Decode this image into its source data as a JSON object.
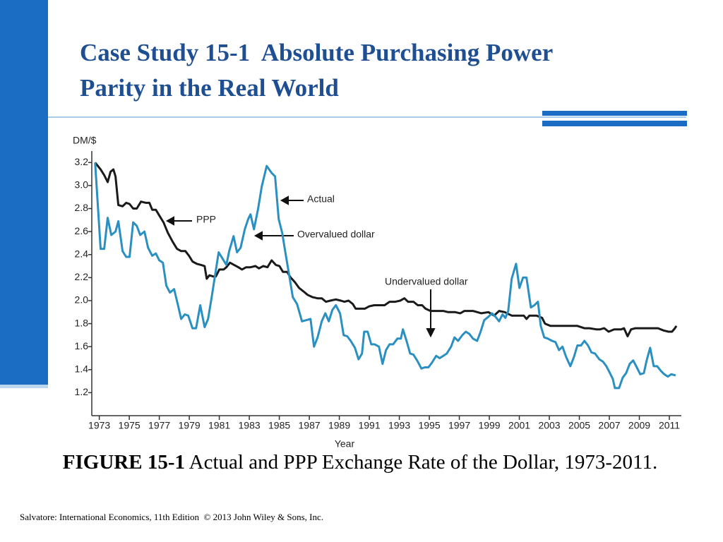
{
  "slide": {
    "title_lines": [
      "Case Study 15-1  Absolute Purchasing Power",
      "Parity in the Real World"
    ],
    "caption_bold": "FIGURE 15-1",
    "caption": "Actual and PPP Exchange Rate of the Dollar, 1973-2011.",
    "footer": "Salvatore: International Economics, 11th Edition  © 2013 John Wiley & Sons, Inc."
  },
  "chart_data": {
    "type": "line",
    "y_label": "DM/$",
    "x_label": "Year",
    "annotations": [
      "Overvalued dollar",
      "Undervalued dollar"
    ],
    "xlim": [
      1972.5,
      2011.8
    ],
    "ylim": [
      1.0,
      3.3
    ],
    "xticks": [
      1973,
      1975,
      1977,
      1979,
      1981,
      1983,
      1985,
      1987,
      1989,
      1991,
      1993,
      1995,
      1997,
      1999,
      2001,
      2003,
      2005,
      2007,
      2009,
      2011
    ],
    "yticks": [
      1.2,
      1.4,
      1.6,
      1.8,
      {
        "value": 2.0,
        "label": "2.0"
      },
      2.2,
      2.4,
      2.6,
      2.8,
      {
        "value": 3.0,
        "label": "3.0"
      },
      3.2
    ],
    "series": [
      {
        "name": "Actual",
        "color": "#2a8fc1",
        "x": [
          1972.72,
          1973.09,
          1973.33,
          1973.56,
          1973.8,
          1974.08,
          1974.27,
          1974.55,
          1974.79,
          1975.02,
          1975.26,
          1975.5,
          1975.73,
          1976.01,
          1976.25,
          1976.53,
          1976.77,
          1977.0,
          1977.24,
          1977.47,
          1977.71,
          1977.99,
          1978.23,
          1978.46,
          1978.7,
          1978.93,
          1979.21,
          1979.45,
          1979.73,
          1980.02,
          1980.25,
          1980.49,
          1980.72,
          1980.96,
          1981.24,
          1981.47,
          1981.66,
          1981.95,
          1982.18,
          1982.42,
          1982.7,
          1982.93,
          1983.08,
          1983.31,
          1983.59,
          1983.83,
          1984.16,
          1984.49,
          1984.72,
          1984.96,
          1985.19,
          1985.43,
          1985.66,
          1985.9,
          1986.18,
          1986.51,
          1986.79,
          1987.08,
          1987.31,
          1987.55,
          1987.83,
          1988.07,
          1988.3,
          1988.54,
          1988.77,
          1989.05,
          1989.29,
          1989.53,
          1989.76,
          1990.04,
          1990.28,
          1990.51,
          1990.66,
          1990.89,
          1991.13,
          1991.36,
          1991.64,
          1991.88,
          1992.11,
          1992.35,
          1992.59,
          1992.87,
          1993.1,
          1993.24,
          1993.48,
          1993.72,
          1993.95,
          1994.23,
          1994.47,
          1994.7,
          1994.94,
          1995.17,
          1995.46,
          1995.69,
          1995.93,
          1996.16,
          1996.45,
          1996.68,
          1996.92,
          1997.2,
          1997.43,
          1997.67,
          1997.91,
          1998.19,
          1998.42,
          1998.66,
          1998.94,
          1999.18,
          1999.41,
          1999.65,
          1999.88,
          2000.07,
          2000.26,
          2000.49,
          2000.78,
          2001.01,
          2001.25,
          2001.48,
          2001.77,
          2002.0,
          2002.24,
          2002.43,
          2002.66,
          2002.9,
          2003.18,
          2003.41,
          2003.65,
          2003.88,
          2004.12,
          2004.4,
          2004.64,
          2004.87,
          2005.11,
          2005.34,
          2005.58,
          2005.81,
          2006.05,
          2006.33,
          2006.57,
          2006.8,
          2007.04,
          2007.23,
          2007.37,
          2007.65,
          2007.89,
          2008.12,
          2008.36,
          2008.59,
          2008.83,
          2009.06,
          2009.3,
          2009.49,
          2009.72,
          2009.96,
          2010.19,
          2010.43,
          2010.66,
          2010.9,
          2011.13,
          2011.42
        ],
        "values": [
          3.2,
          2.45,
          2.45,
          2.72,
          2.57,
          2.6,
          2.69,
          2.43,
          2.38,
          2.38,
          2.68,
          2.65,
          2.57,
          2.6,
          2.46,
          2.39,
          2.41,
          2.35,
          2.33,
          2.13,
          2.07,
          2.1,
          1.97,
          1.84,
          1.88,
          1.87,
          1.76,
          1.76,
          1.96,
          1.77,
          1.84,
          2.03,
          2.22,
          2.42,
          2.36,
          2.31,
          2.43,
          2.56,
          2.42,
          2.46,
          2.62,
          2.71,
          2.75,
          2.62,
          2.8,
          2.99,
          3.17,
          3.11,
          3.08,
          2.71,
          2.59,
          2.4,
          2.22,
          2.03,
          1.97,
          1.82,
          1.83,
          1.84,
          1.6,
          1.68,
          1.82,
          1.89,
          1.82,
          1.92,
          1.96,
          1.89,
          1.7,
          1.69,
          1.65,
          1.59,
          1.49,
          1.54,
          1.73,
          1.73,
          1.62,
          1.62,
          1.6,
          1.45,
          1.57,
          1.62,
          1.62,
          1.67,
          1.67,
          1.75,
          1.65,
          1.54,
          1.53,
          1.47,
          1.41,
          1.42,
          1.42,
          1.46,
          1.52,
          1.5,
          1.52,
          1.54,
          1.6,
          1.68,
          1.65,
          1.7,
          1.73,
          1.71,
          1.67,
          1.65,
          1.73,
          1.83,
          1.86,
          1.89,
          1.86,
          1.82,
          1.88,
          1.85,
          1.91,
          2.19,
          2.32,
          2.11,
          2.2,
          2.2,
          1.94,
          1.96,
          1.99,
          1.78,
          1.68,
          1.67,
          1.65,
          1.64,
          1.57,
          1.6,
          1.51,
          1.43,
          1.51,
          1.61,
          1.61,
          1.65,
          1.61,
          1.55,
          1.54,
          1.49,
          1.47,
          1.43,
          1.37,
          1.32,
          1.24,
          1.24,
          1.33,
          1.37,
          1.45,
          1.48,
          1.42,
          1.36,
          1.37,
          1.48,
          1.59,
          1.43,
          1.43,
          1.39,
          1.36,
          1.34,
          1.36,
          1.35
        ]
      },
      {
        "name": "PPP",
        "color": "#1a1a1a",
        "x": [
          1972.72,
          1973.09,
          1973.33,
          1973.56,
          1973.75,
          1973.94,
          1974.08,
          1974.27,
          1974.55,
          1974.79,
          1975.02,
          1975.26,
          1975.5,
          1975.78,
          1976.11,
          1976.34,
          1976.53,
          1976.77,
          1977.0,
          1977.28,
          1977.57,
          1977.9,
          1978.18,
          1978.46,
          1978.74,
          1978.98,
          1979.21,
          1979.5,
          1979.78,
          1980.02,
          1980.16,
          1980.34,
          1980.58,
          1980.77,
          1981.0,
          1981.29,
          1981.47,
          1981.71,
          1981.99,
          1982.27,
          1982.51,
          1982.79,
          1983.08,
          1983.41,
          1983.64,
          1983.93,
          1984.21,
          1984.49,
          1984.77,
          1985.01,
          1985.24,
          1985.52,
          1985.76,
          1986.04,
          1986.32,
          1986.61,
          1986.89,
          1987.22,
          1987.55,
          1987.83,
          1988.11,
          1988.4,
          1988.77,
          1989.1,
          1989.34,
          1989.62,
          1989.9,
          1990.09,
          1990.37,
          1990.7,
          1990.99,
          1991.32,
          1991.64,
          1992.02,
          1992.35,
          1992.73,
          1993.06,
          1993.34,
          1993.58,
          1993.95,
          1994.23,
          1994.52,
          1994.75,
          1995.08,
          1995.55,
          1995.93,
          1996.26,
          1996.73,
          1997.06,
          1997.34,
          1997.91,
          1998.47,
          1998.94,
          1999.32,
          1999.65,
          2000.03,
          2000.49,
          2000.97,
          2001.3,
          2001.48,
          2001.67,
          2002.14,
          2002.52,
          2002.71,
          2003.08,
          2003.79,
          2004.5,
          2004.87,
          2005.34,
          2005.67,
          2006.14,
          2006.38,
          2006.66,
          2006.95,
          2007.32,
          2007.79,
          2007.98,
          2008.22,
          2008.45,
          2008.74,
          2009.21,
          2009.91,
          2010.24,
          2010.62,
          2010.95,
          2011.18,
          2011.37,
          2011.47
        ],
        "values": [
          3.2,
          3.14,
          3.09,
          3.03,
          3.12,
          3.14,
          3.08,
          2.83,
          2.82,
          2.85,
          2.84,
          2.8,
          2.8,
          2.86,
          2.85,
          2.85,
          2.79,
          2.79,
          2.74,
          2.68,
          2.59,
          2.51,
          2.45,
          2.43,
          2.43,
          2.39,
          2.34,
          2.32,
          2.31,
          2.3,
          2.19,
          2.22,
          2.21,
          2.21,
          2.27,
          2.27,
          2.29,
          2.33,
          2.31,
          2.29,
          2.27,
          2.29,
          2.29,
          2.3,
          2.28,
          2.3,
          2.29,
          2.35,
          2.31,
          2.3,
          2.25,
          2.25,
          2.2,
          2.16,
          2.11,
          2.08,
          2.05,
          2.03,
          2.02,
          2.02,
          1.99,
          2.0,
          2.01,
          2.0,
          1.99,
          2.0,
          1.97,
          1.93,
          1.93,
          1.93,
          1.95,
          1.96,
          1.96,
          1.96,
          1.99,
          1.99,
          2.0,
          2.02,
          1.99,
          1.99,
          1.96,
          1.96,
          1.93,
          1.91,
          1.91,
          1.91,
          1.9,
          1.9,
          1.89,
          1.91,
          1.91,
          1.89,
          1.9,
          1.87,
          1.91,
          1.9,
          1.87,
          1.87,
          1.87,
          1.84,
          1.87,
          1.87,
          1.85,
          1.8,
          1.78,
          1.78,
          1.78,
          1.78,
          1.76,
          1.76,
          1.75,
          1.75,
          1.76,
          1.73,
          1.75,
          1.75,
          1.76,
          1.69,
          1.75,
          1.76,
          1.76,
          1.76,
          1.76,
          1.74,
          1.73,
          1.73,
          1.76,
          1.78
        ]
      }
    ]
  }
}
